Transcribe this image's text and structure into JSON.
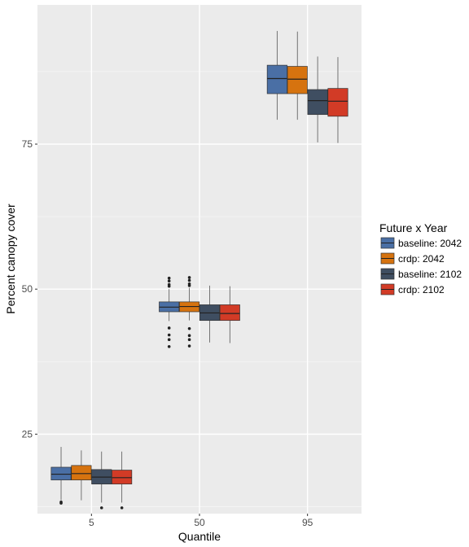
{
  "chart_data": {
    "type": "box",
    "xlabel": "Quantile",
    "ylabel": "Percent canopy cover",
    "categories": [
      "5",
      "50",
      "95"
    ],
    "yticks": [
      25,
      50,
      75
    ],
    "ylim": [
      11.3,
      99
    ],
    "grid": true,
    "legend": {
      "title": "Future x Year",
      "position": "right"
    },
    "series": [
      {
        "name": "baseline: 2042",
        "color": "#4a6fa5",
        "boxes": [
          {
            "category": "5",
            "whisker_low": 13.6,
            "q1": 17.1,
            "median": 18.1,
            "q3": 19.3,
            "whisker_high": 22.8,
            "outliers": [
              13.3,
              13.1
            ]
          },
          {
            "category": "50",
            "whisker_low": 44.5,
            "q1": 46.1,
            "median": 46.9,
            "q3": 47.8,
            "whisker_high": 50.0,
            "outliers": [
              51.9,
              51.4,
              50.8,
              50.5,
              43.3,
              42.1,
              41.3,
              40.1
            ]
          },
          {
            "category": "95",
            "whisker_low": 79.2,
            "q1": 83.7,
            "median": 86.3,
            "q3": 88.6,
            "whisker_high": 94.5,
            "outliers": []
          }
        ]
      },
      {
        "name": "crdp: 2042",
        "color": "#d6730f",
        "boxes": [
          {
            "category": "5",
            "whisker_low": 13.6,
            "q1": 17.1,
            "median": 18.2,
            "q3": 19.6,
            "whisker_high": 22.2,
            "outliers": []
          },
          {
            "category": "50",
            "whisker_low": 44.6,
            "q1": 46.1,
            "median": 47.0,
            "q3": 47.8,
            "whisker_high": 50.2,
            "outliers": [
              52.0,
              51.5,
              50.9,
              50.6,
              43.2,
              42.0,
              41.3,
              40.2
            ]
          },
          {
            "category": "95",
            "whisker_low": 79.2,
            "q1": 83.7,
            "median": 86.2,
            "q3": 88.4,
            "whisker_high": 94.4,
            "outliers": []
          }
        ]
      },
      {
        "name": "baseline: 2102",
        "color": "#3f4e61",
        "boxes": [
          {
            "category": "5",
            "whisker_low": 13.2,
            "q1": 16.4,
            "median": 17.6,
            "q3": 18.9,
            "whisker_high": 22.0,
            "outliers": [
              12.3
            ]
          },
          {
            "category": "50",
            "whisker_low": 40.8,
            "q1": 44.6,
            "median": 45.9,
            "q3": 47.3,
            "whisker_high": 50.6,
            "outliers": []
          },
          {
            "category": "95",
            "whisker_low": 75.3,
            "q1": 80.1,
            "median": 82.5,
            "q3": 84.4,
            "whisker_high": 90.1,
            "outliers": []
          }
        ]
      },
      {
        "name": "crdp: 2102",
        "color": "#d23b26",
        "boxes": [
          {
            "category": "5",
            "whisker_low": 13.2,
            "q1": 16.4,
            "median": 17.5,
            "q3": 18.8,
            "whisker_high": 22.0,
            "outliers": [
              12.3
            ]
          },
          {
            "category": "50",
            "whisker_low": 40.7,
            "q1": 44.6,
            "median": 45.8,
            "q3": 47.3,
            "whisker_high": 50.5,
            "outliers": []
          },
          {
            "category": "95",
            "whisker_low": 75.2,
            "q1": 79.8,
            "median": 82.4,
            "q3": 84.6,
            "whisker_high": 90.0,
            "outliers": []
          }
        ]
      }
    ]
  }
}
